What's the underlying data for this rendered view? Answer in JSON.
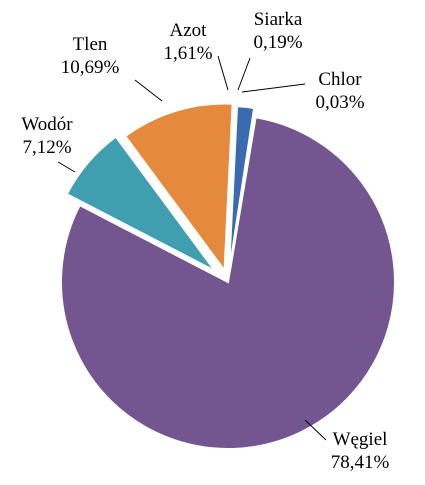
{
  "chart_data": {
    "type": "pie",
    "title": "",
    "slices": [
      {
        "name": "Węgiel",
        "value": 78.41,
        "label": "78,41%",
        "color": "#735690"
      },
      {
        "name": "Wodór",
        "value": 7.12,
        "label": "7,12%",
        "color": "#3f9fb0"
      },
      {
        "name": "Tlen",
        "value": 10.69,
        "label": "10,69%",
        "color": "#e5893c"
      },
      {
        "name": "Azot",
        "value": 1.61,
        "label": "1,61%",
        "color": "#3a6bb0"
      },
      {
        "name": "Siarka",
        "value": 0.19,
        "label": "0,19%",
        "color": "#8a8a8a"
      },
      {
        "name": "Chlor",
        "value": 0.03,
        "label": "0,03%",
        "color": "#c0392b"
      }
    ],
    "legend": "none",
    "exploded": true
  }
}
